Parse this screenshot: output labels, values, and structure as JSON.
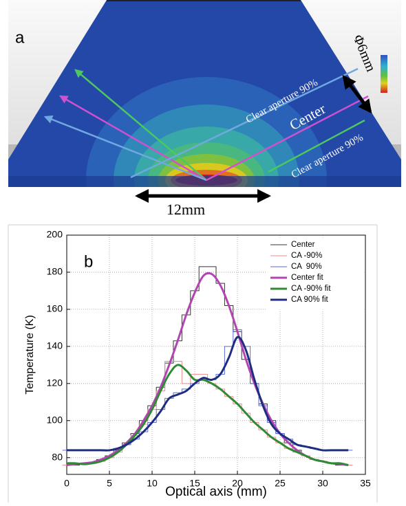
{
  "panel_a": {
    "label": "a",
    "annotations": [
      "Clear aperture 90%",
      "Center",
      "Clear aperture 90%"
    ],
    "diameter_label": "Φ6mm",
    "width_label": "12mm"
  },
  "chart_data": {
    "type": "line",
    "panel_label": "b",
    "x_label": "Optical axis (mm)",
    "y_label": "Temperature (K)",
    "xlim": [
      0,
      35
    ],
    "ylim": [
      71,
      200
    ],
    "xticks": [
      0,
      5,
      10,
      15,
      20,
      25,
      30,
      35
    ],
    "yticks": [
      80,
      100,
      120,
      140,
      160,
      180,
      200
    ],
    "grid": true,
    "legend": "upper right",
    "x": [
      0,
      1,
      2,
      3,
      4,
      5,
      6,
      7,
      8,
      9,
      10,
      11,
      12,
      13,
      14,
      15,
      16,
      17,
      18,
      19,
      20,
      21,
      22,
      23,
      24,
      25,
      26,
      27,
      28,
      29,
      30,
      31,
      32,
      33
    ],
    "series": [
      {
        "name": "Center",
        "color": "#333333",
        "style": "step",
        "width": 1,
        "values": [
          76,
          76,
          77,
          77,
          79,
          81,
          84,
          88,
          93,
          100,
          108,
          118,
          131,
          143,
          157,
          170,
          183,
          183,
          174,
          162,
          148,
          133,
          120,
          109,
          100,
          93,
          88,
          84,
          81,
          79,
          78,
          77,
          76,
          76
        ]
      },
      {
        "name": "CA -90%",
        "color": "#f08a8a",
        "style": "step",
        "width": 1,
        "values": [
          76,
          77,
          77,
          77,
          78,
          80,
          83,
          87,
          92,
          98,
          106,
          116,
          132,
          132,
          120,
          125,
          125,
          120,
          117,
          113,
          109,
          104,
          99,
          95,
          91,
          88,
          85,
          83,
          81,
          79,
          78,
          77,
          77,
          76
        ]
      },
      {
        "name": "CA  90%",
        "color": "#5a6ad8",
        "style": "step",
        "width": 1,
        "values": [
          84,
          84,
          84,
          84,
          84,
          84,
          85,
          87,
          90,
          94,
          99,
          106,
          112,
          115,
          117,
          120,
          122,
          122,
          125,
          140,
          149,
          140,
          120,
          108,
          99,
          93,
          90,
          87,
          86,
          85,
          84,
          84,
          84,
          84
        ]
      },
      {
        "name": "Center fit",
        "color": "#b245b2",
        "style": "smooth",
        "width": 3,
        "values": [
          76,
          76.5,
          77,
          77.5,
          79,
          81,
          84,
          88,
          93,
          100,
          108,
          118,
          130,
          143,
          157,
          169,
          178,
          179,
          173,
          162,
          148,
          133,
          120,
          109,
          100,
          93,
          88,
          84,
          81,
          79,
          78,
          77,
          76.5,
          76
        ]
      },
      {
        "name": "CA -90% fit",
        "color": "#2f8a35",
        "style": "smooth",
        "width": 3,
        "values": [
          77,
          77,
          76.5,
          77,
          78,
          80,
          83,
          87,
          92,
          98,
          106,
          116,
          125,
          130,
          127,
          122,
          122,
          120,
          117,
          113,
          109,
          104,
          99,
          95,
          91,
          88,
          85,
          83,
          81,
          79,
          78,
          77,
          77,
          76
        ]
      },
      {
        "name": "CA 90% fit",
        "color": "#1e2d80",
        "style": "smooth",
        "width": 3,
        "values": [
          84,
          84,
          84,
          84,
          84,
          84,
          85,
          87,
          90,
          94,
          99,
          105,
          112,
          114,
          116,
          120,
          123,
          122,
          125,
          134,
          145,
          138,
          122,
          108,
          98,
          93,
          90,
          87,
          86,
          85,
          84,
          84,
          84,
          84
        ]
      }
    ]
  }
}
